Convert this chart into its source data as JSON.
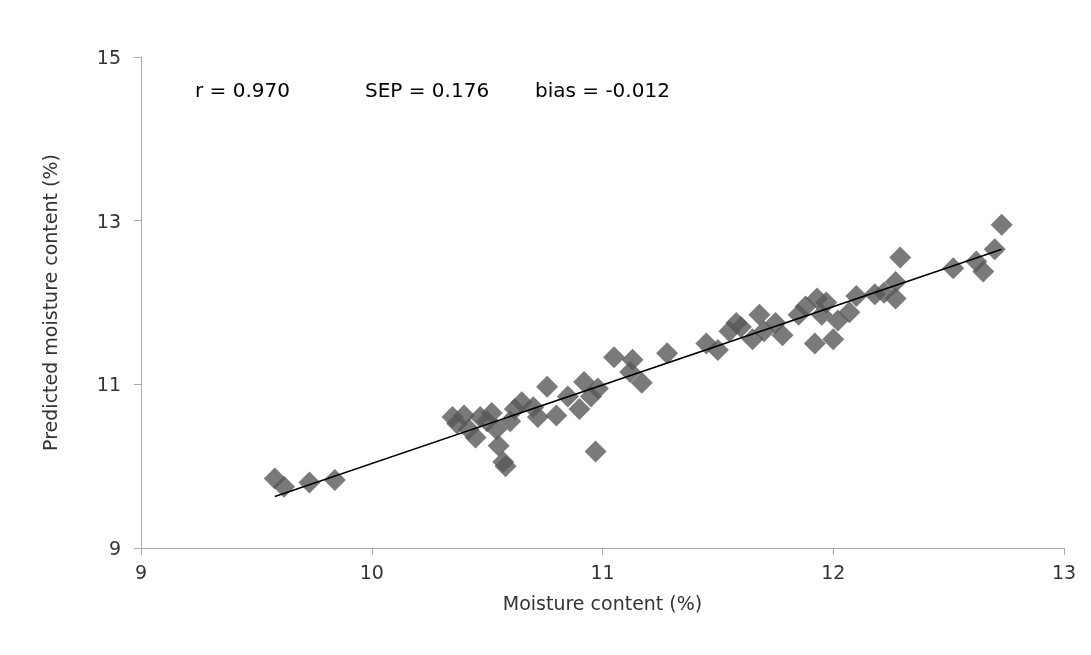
{
  "chart_data": {
    "type": "scatter",
    "xlabel": "Moisture content (%)",
    "ylabel": "Predicted moisture content (%)",
    "annotations": [
      "r = 0.970",
      "SEP = 0.176",
      "bias = -0.012"
    ],
    "xlim": [
      9,
      13
    ],
    "xticks": [
      9,
      10,
      11,
      12,
      13
    ],
    "ylim": [
      9,
      15
    ],
    "yticks": [
      9,
      11,
      13,
      15
    ],
    "grid": false,
    "marker": "diamond",
    "series": [
      {
        "color": "#595959",
        "x": [
          9.58,
          9.62,
          9.73,
          9.84,
          10.35,
          10.37,
          10.4,
          10.42,
          10.45,
          10.47,
          10.5,
          10.52,
          10.54,
          10.55,
          10.57,
          10.58,
          10.6,
          10.62,
          10.65,
          10.7,
          10.72,
          10.76,
          10.8,
          10.85,
          10.9,
          10.92,
          10.95,
          10.97,
          10.98,
          11.05,
          11.12,
          11.13,
          11.17,
          11.28,
          11.45,
          11.5,
          11.55,
          11.58,
          11.6,
          11.65,
          11.68,
          11.7,
          11.75,
          11.78,
          11.85,
          11.88,
          11.92,
          11.93,
          11.95,
          11.97,
          12.0,
          12.02,
          12.07,
          12.1,
          12.18,
          12.22,
          12.27,
          12.27,
          12.29,
          12.52,
          12.62,
          12.65,
          12.7,
          12.73
        ],
        "values": [
          9.85,
          9.75,
          9.8,
          9.83,
          10.6,
          10.52,
          10.62,
          10.45,
          10.35,
          10.6,
          10.55,
          10.65,
          10.45,
          10.25,
          10.05,
          10.0,
          10.55,
          10.7,
          10.78,
          10.72,
          10.6,
          10.97,
          10.62,
          10.85,
          10.7,
          11.03,
          10.85,
          10.18,
          10.95,
          11.33,
          11.15,
          11.3,
          11.02,
          11.38,
          11.5,
          11.42,
          11.65,
          11.75,
          11.7,
          11.55,
          11.85,
          11.65,
          11.75,
          11.6,
          11.85,
          11.95,
          11.5,
          12.05,
          11.85,
          12.0,
          11.55,
          11.78,
          11.88,
          12.08,
          12.1,
          12.12,
          12.05,
          12.25,
          12.55,
          12.42,
          12.5,
          12.38,
          12.65,
          12.95
        ]
      },
      {
        "type": "line",
        "color": "#000000",
        "marker": "none",
        "x": [
          9.58,
          12.73
        ],
        "values": [
          9.63,
          12.65
        ]
      }
    ]
  }
}
